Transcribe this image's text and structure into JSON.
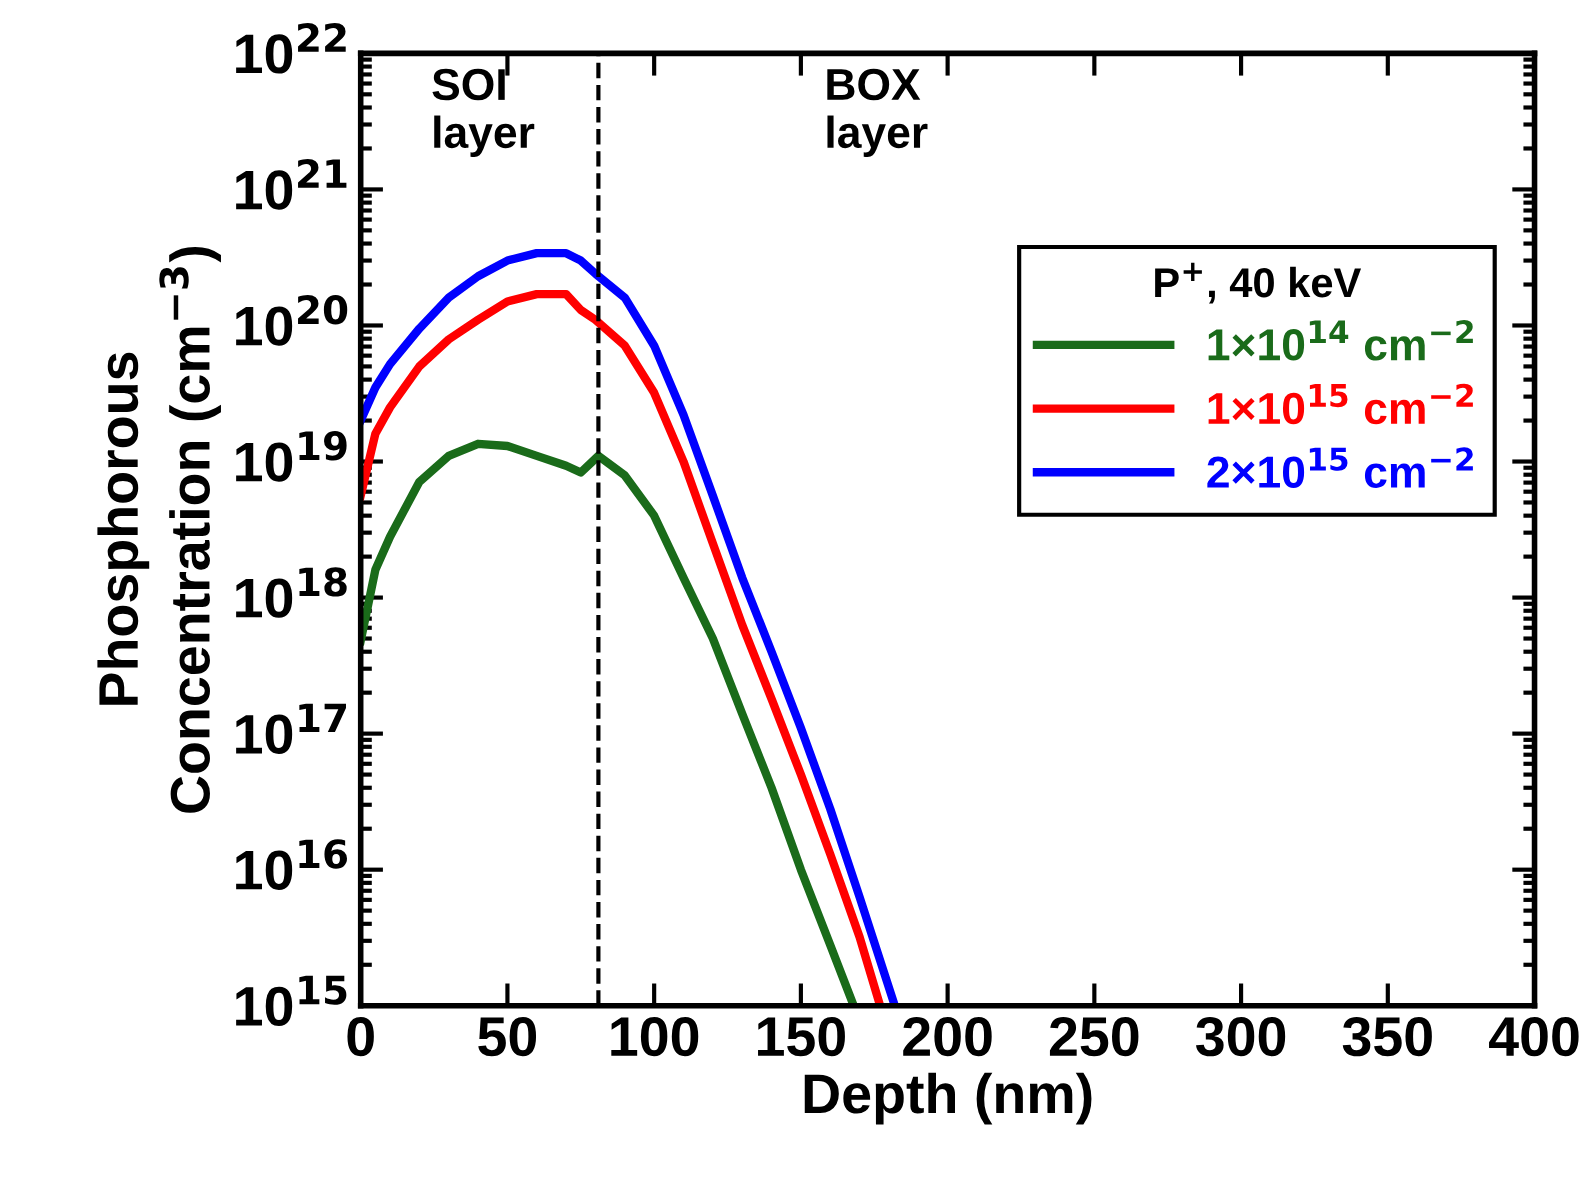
{
  "chart_data": {
    "type": "line",
    "xlabel": "Depth (nm)",
    "ylabel": "Phosphorous\nConcentration (cm$^{−3}$)",
    "legend_title": "P$^{+}$, 40 keV",
    "annotations": [
      "SOI\nlayer",
      "BOX\nlayer"
    ],
    "log": "y",
    "legend": "top right",
    "line_style": "solid",
    "marker": "none",
    "grid": false,
    "xlim": [
      0,
      400
    ],
    "xticks": [
      0,
      50,
      100,
      150,
      200,
      250,
      300,
      350,
      400
    ],
    "ylim": [
      1000000000000000.0,
      1e+22
    ],
    "yticks": [
      {
        "value": 1000000000000000.0,
        "label": "10$^{15}$"
      },
      {
        "value": 1e+16,
        "label": "10$^{16}$"
      },
      {
        "value": 1e+17,
        "label": "10$^{17}$"
      },
      {
        "value": 1e+18,
        "label": "10$^{18}$"
      },
      {
        "value": 1e+19,
        "label": "10$^{19}$"
      },
      {
        "value": 1e+20,
        "label": "10$^{20}$"
      },
      {
        "value": 1e+21,
        "label": "10$^{21}$"
      },
      {
        "value": 1e+22,
        "label": "10$^{22}$"
      }
    ],
    "ref_lines": [
      {
        "axis": "x",
        "value": 81,
        "label": null,
        "color": "#000000",
        "line_style": "dashed"
      }
    ],
    "series": [
      {
        "name": "1×10$^{14}$ cm$^{−2}$",
        "color": "#1a6b1a",
        "x": [
          0,
          5,
          10,
          20,
          30,
          40,
          50,
          60,
          70,
          75,
          81,
          90,
          100,
          110,
          120,
          130,
          140,
          150,
          160,
          168
        ],
        "values": [
          4.8e+17,
          1.6e+18,
          2.8e+18,
          7.1e+18,
          1.1e+19,
          1.35e+19,
          1.3e+19,
          1.1e+19,
          9.3e+18,
          8.3e+18,
          1.1e+19,
          7.9e+18,
          4e+18,
          1.4e+18,
          5e+17,
          1.4e+17,
          4e+16,
          1e+16,
          2800000000000000.0,
          1000000000000000.0
        ]
      },
      {
        "name": "1×10$^{15}$ cm$^{−2}$",
        "color": "#ff0000",
        "x": [
          0,
          5,
          10,
          20,
          30,
          40,
          50,
          60,
          70,
          75,
          80,
          90,
          100,
          110,
          120,
          130,
          140,
          150,
          160,
          170,
          177
        ],
        "values": [
          5.6e+18,
          1.6e+19,
          2.5e+19,
          5e+19,
          7.9e+19,
          1.1e+20,
          1.5e+20,
          1.7e+20,
          1.7e+20,
          1.3e+20,
          1.1e+20,
          7.1e+19,
          3.2e+19,
          1e+19,
          2.5e+18,
          6.3e+17,
          1.8e+17,
          5e+16,
          1.3e+16,
          3200000000000000.0,
          1000000000000000.0
        ]
      },
      {
        "name": "2×10$^{15}$ cm$^{−2}$",
        "color": "#0000ff",
        "x": [
          0,
          5,
          10,
          20,
          30,
          40,
          50,
          60,
          70,
          75,
          80,
          90,
          100,
          110,
          120,
          130,
          140,
          150,
          160,
          170,
          182
        ],
        "values": [
          2e+19,
          3.5e+19,
          5.2e+19,
          9.5e+19,
          1.6e+20,
          2.3e+20,
          3e+20,
          3.4e+20,
          3.4e+20,
          3e+20,
          2.4e+20,
          1.6e+20,
          7.1e+19,
          2.2e+19,
          5.6e+18,
          1.4e+18,
          4e+17,
          1.1e+17,
          2.8e+16,
          6300000000000000.0,
          1000000000000000.0
        ]
      }
    ]
  }
}
